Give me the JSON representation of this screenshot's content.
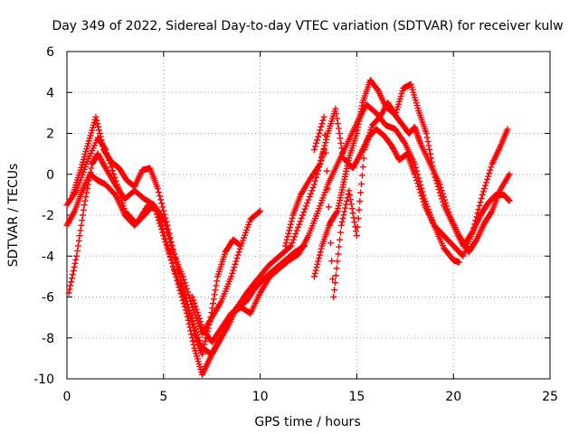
{
  "chart_data": {
    "type": "scatter",
    "title": "Day 349 of 2022, Sidereal Day-to-day VTEC variation (SDTVAR) for receiver kulw",
    "xlabel": "GPS time / hours",
    "ylabel": "SDTVAR / TECUs",
    "xlim": [
      0,
      25
    ],
    "ylim": [
      -10,
      6
    ],
    "x_ticks": [
      0,
      5,
      10,
      15,
      20,
      25
    ],
    "y_ticks": [
      -10,
      -8,
      -6,
      -4,
      -2,
      0,
      2,
      4,
      6
    ],
    "x_tick_labels": [
      "0",
      "5",
      "10",
      "15",
      "20",
      "25"
    ],
    "y_tick_labels": [
      "-10",
      "-8",
      "-6",
      "-4",
      "-2",
      "0",
      "2",
      "4",
      "6"
    ],
    "grid": true,
    "marker": "+",
    "color": "#ff0000",
    "series": [
      {
        "name": "track-1",
        "x": [
          0.0,
          0.5,
          1.0,
          1.6,
          2.0,
          2.6,
          3.0,
          3.6,
          4.2,
          4.7,
          5.2,
          5.7,
          6.2,
          6.6,
          7.0,
          7.4,
          7.8,
          8.3,
          8.8,
          9.3,
          9.8,
          10.4,
          11.0,
          11.6,
          12.2,
          12.8,
          13.3
        ],
        "y": [
          -1.5,
          -0.8,
          0.5,
          1.8,
          1.2,
          -0.5,
          -1.8,
          -2.4,
          -1.5,
          -1.8,
          -3.5,
          -5.2,
          -6.8,
          -8.5,
          -9.8,
          -9.0,
          -8.2,
          -7.5,
          -6.5,
          -5.8,
          -5.2,
          -4.5,
          -4.0,
          -3.5,
          -2.0,
          -0.5,
          1.2
        ]
      },
      {
        "name": "track-2",
        "x": [
          0.0,
          0.4,
          0.8,
          1.2,
          1.6,
          2.0,
          2.5,
          3.0,
          3.5,
          4.0,
          4.5,
          5.0,
          5.5,
          6.0,
          6.5,
          7.0,
          7.5,
          8.0,
          8.4,
          8.8,
          9.3,
          9.8,
          10.3,
          10.8,
          11.3,
          11.8,
          12.3
        ],
        "y": [
          -2.5,
          -1.8,
          -0.8,
          0.0,
          -0.3,
          -0.5,
          -1.0,
          -2.0,
          -2.5,
          -2.0,
          -1.5,
          -3.0,
          -4.5,
          -5.8,
          -7.2,
          -8.5,
          -8.8,
          -8.0,
          -7.0,
          -6.5,
          -6.2,
          -5.5,
          -5.0,
          -4.6,
          -4.2,
          -3.8,
          -3.5
        ]
      },
      {
        "name": "track-3",
        "x": [
          0.1,
          0.5,
          0.9,
          1.3,
          1.6,
          2.0,
          2.5,
          3.0,
          3.5,
          4.0,
          4.5,
          5.0,
          5.5,
          6.0,
          6.5,
          7.0,
          7.5,
          8.0,
          8.5,
          9.0,
          9.5,
          10.0
        ],
        "y": [
          -5.8,
          -4.0,
          -1.5,
          0.5,
          1.0,
          0.3,
          -0.5,
          -1.2,
          -0.8,
          -1.2,
          -1.5,
          -2.2,
          -3.8,
          -5.0,
          -6.5,
          -7.8,
          -7.0,
          -6.2,
          -5.0,
          -3.5,
          -2.2,
          -1.8
        ]
      },
      {
        "name": "track-4",
        "x": [
          0.3,
          0.7,
          1.1,
          1.5,
          1.9,
          2.3,
          2.7,
          3.1,
          3.5,
          3.9,
          4.3,
          4.7,
          5.2,
          5.7,
          6.2,
          6.6,
          7.0,
          7.4,
          7.8,
          8.2,
          8.6,
          9.0
        ],
        "y": [
          -1.0,
          0.2,
          1.5,
          2.8,
          1.2,
          0.6,
          0.3,
          -0.3,
          -0.6,
          0.2,
          0.3,
          -0.7,
          -2.5,
          -4.5,
          -6.2,
          -7.8,
          -8.8,
          -7.2,
          -5.0,
          -3.8,
          -3.2,
          -3.5
        ]
      },
      {
        "name": "track-5",
        "x": [
          6.5,
          7.0,
          7.5,
          8.0,
          8.5,
          9.0,
          9.5,
          10.0,
          10.5,
          11.0,
          11.5,
          12.0,
          12.5,
          13.0,
          13.5,
          14.0,
          14.5,
          15.0,
          15.5,
          16.0,
          16.5,
          17.0,
          17.5,
          18.0,
          18.5,
          19.0,
          19.5,
          20.0,
          20.3
        ],
        "y": [
          -6.0,
          -7.5,
          -8.2,
          -7.5,
          -6.8,
          -6.5,
          -6.8,
          -5.8,
          -5.0,
          -4.6,
          -4.2,
          -3.9,
          -3.0,
          -1.8,
          -0.5,
          0.5,
          1.5,
          2.5,
          3.4,
          3.0,
          2.4,
          2.2,
          1.5,
          0.5,
          -1.2,
          -2.5,
          -3.6,
          -4.2,
          -4.3
        ]
      },
      {
        "name": "track-6",
        "x": [
          11.3,
          11.7,
          12.1,
          12.6,
          13.1,
          13.5,
          13.9,
          14.3,
          14.8,
          15.2,
          15.6,
          16.0,
          16.4,
          16.8,
          17.2,
          17.6,
          18.0,
          18.5,
          19.0,
          19.5,
          20.0,
          20.5,
          21.0,
          21.5,
          22.0,
          22.4,
          22.8
        ],
        "y": [
          -3.5,
          -2.0,
          -1.0,
          -0.2,
          0.5,
          2.0,
          3.2,
          0.8,
          0.3,
          1.0,
          1.8,
          2.2,
          1.9,
          1.4,
          0.7,
          1.0,
          0.0,
          -1.5,
          -2.5,
          -3.0,
          -3.5,
          -4.0,
          -2.8,
          -1.0,
          0.5,
          1.3,
          2.2
        ]
      },
      {
        "name": "track-7",
        "x": [
          12.8,
          13.2,
          13.6,
          14.0,
          14.3,
          14.6,
          15.0,
          15.3,
          15.7,
          16.1,
          16.5,
          16.9,
          17.3,
          17.7,
          18.0,
          18.3,
          18.8,
          19.3,
          19.8,
          20.3,
          20.8,
          21.2,
          21.6,
          22.0,
          22.4,
          22.9
        ],
        "y": [
          -5.0,
          -3.5,
          -2.4,
          -1.8,
          -0.5,
          0.8,
          2.0,
          3.5,
          4.6,
          4.1,
          3.3,
          3.0,
          2.5,
          2.0,
          2.3,
          1.5,
          0.5,
          -0.5,
          -2.0,
          -3.0,
          -3.8,
          -3.2,
          -2.4,
          -1.8,
          -0.8,
          0.0
        ]
      },
      {
        "name": "track-8",
        "x": [
          12.8,
          13.3,
          13.8,
          14.2,
          14.6,
          15.0,
          15.4,
          15.8,
          16.2,
          16.6,
          17.0,
          17.4,
          17.8,
          18.2,
          18.6,
          19.0,
          19.5,
          20.0,
          20.5,
          21.0,
          21.4,
          21.8,
          22.2,
          22.6,
          22.9
        ],
        "y": [
          1.2,
          2.8,
          -6.0,
          -2.5,
          -0.8,
          -3.0,
          1.2,
          2.4,
          2.8,
          3.5,
          2.9,
          4.2,
          4.4,
          3.1,
          2.0,
          0.0,
          -1.5,
          -2.5,
          -3.5,
          -2.8,
          -2.0,
          -1.4,
          -1.0,
          -1.0,
          -1.3
        ]
      }
    ]
  }
}
